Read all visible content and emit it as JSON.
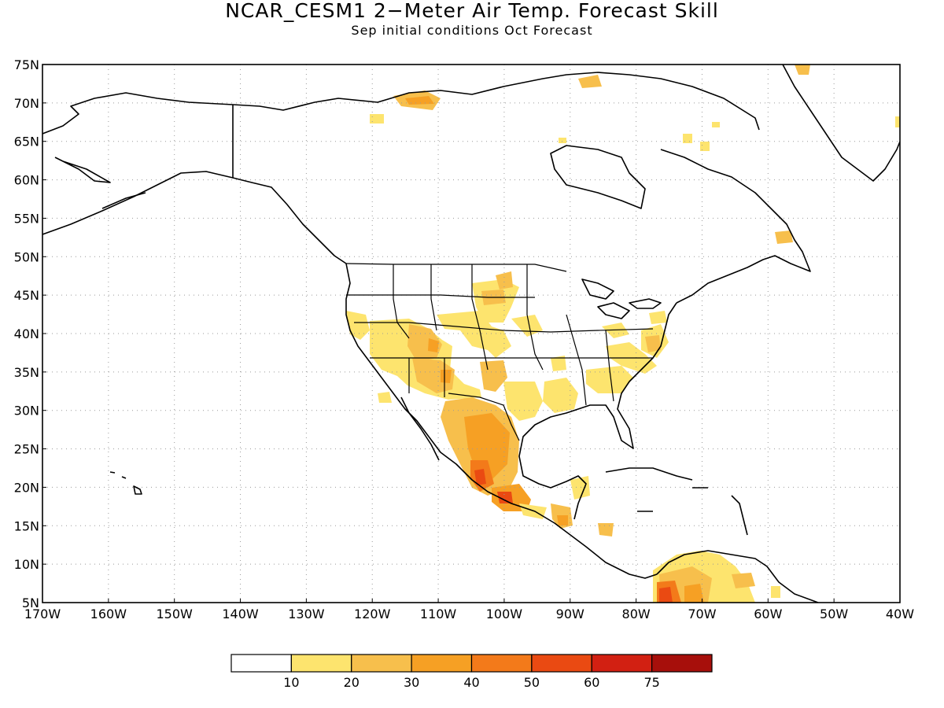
{
  "title": "NCAR_CESM1 2−Meter Air Temp. Forecast Skill",
  "subtitle": "Sep initial conditions  Oct Forecast",
  "map": {
    "lon_range": [
      -170,
      -40
    ],
    "lat_range": [
      5,
      75
    ],
    "grid": "dotted",
    "lat_ticks": [
      "75N",
      "70N",
      "65N",
      "60N",
      "55N",
      "50N",
      "45N",
      "40N",
      "35N",
      "30N",
      "25N",
      "20N",
      "15N",
      "10N",
      "5N"
    ],
    "lon_ticks": [
      "170W",
      "160W",
      "150W",
      "140W",
      "130W",
      "120W",
      "110W",
      "100W",
      "90W",
      "80W",
      "70W",
      "60W",
      "50W",
      "40W"
    ]
  },
  "colorbar": {
    "labels": [
      "10",
      "20",
      "30",
      "40",
      "50",
      "60",
      "75"
    ],
    "colors": [
      "#ffffff",
      "#fde46e",
      "#f7bf4c",
      "#f6a024",
      "#f37a1a",
      "#ea4a12",
      "#d22012",
      "#a70f0b"
    ]
  },
  "colors": {
    "land_outline": "#000000",
    "grid": "#9a9a9a"
  }
}
